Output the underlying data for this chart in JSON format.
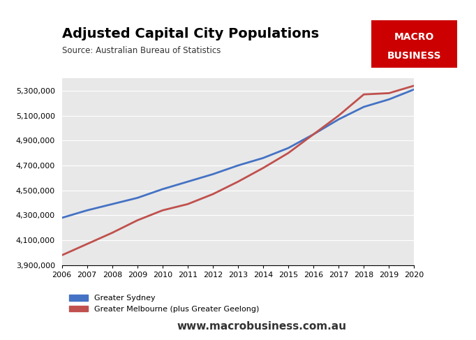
{
  "title": "Adjusted Capital City Populations",
  "source": "Source: Australian Bureau of Statistics",
  "website": "www.macrobusiness.com.au",
  "years": [
    2006,
    2007,
    2008,
    2009,
    2010,
    2011,
    2012,
    2013,
    2014,
    2015,
    2016,
    2017,
    2018,
    2019,
    2020
  ],
  "sydney": [
    4280000,
    4340000,
    4390000,
    4440000,
    4510000,
    4570000,
    4630000,
    4700000,
    4760000,
    4840000,
    4950000,
    5070000,
    5170000,
    5230000,
    5310000
  ],
  "melbourne": [
    3980000,
    4070000,
    4160000,
    4260000,
    4340000,
    4390000,
    4470000,
    4570000,
    4680000,
    4800000,
    4950000,
    5100000,
    5270000,
    5280000,
    5340000
  ],
  "sydney_color": "#4472C4",
  "melbourne_color": "#C0504D",
  "background_color": "#E8E8E8",
  "plot_bg_color": "#E8E8E8",
  "ylim_min": 3900000,
  "ylim_max": 5400000,
  "ytick_step": 200000,
  "logo_bg_color": "#CC0000",
  "logo_text1": "MACRO",
  "logo_text2": "BUSINESS",
  "line_width": 2.0
}
